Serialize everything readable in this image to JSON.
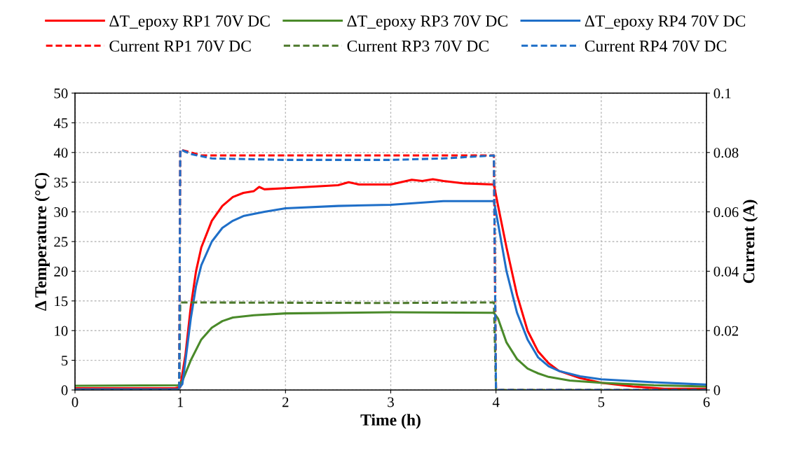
{
  "chart_data": {
    "type": "line",
    "xlabel": "Time (h)",
    "ylabel": "Δ Temperature (°C)",
    "y2label": "Current (A)",
    "xlim": [
      0,
      6
    ],
    "xticks": [
      0,
      1,
      2,
      3,
      4,
      5,
      6
    ],
    "ylim": [
      0,
      50
    ],
    "yticks": [
      0,
      5,
      10,
      15,
      20,
      25,
      30,
      35,
      40,
      45,
      50
    ],
    "y2lim": [
      0,
      0.1
    ],
    "y2ticks": [
      0,
      0.02,
      0.04,
      0.06,
      0.08,
      0.1
    ],
    "grid": true,
    "legend": "top",
    "marker": "none",
    "series": [
      {
        "name": "ΔT_epoxy RP1 70V DC",
        "color": "#ff0000",
        "line_style": "solid",
        "x": [
          0,
          0.95,
          1.0,
          1.05,
          1.1,
          1.15,
          1.2,
          1.3,
          1.4,
          1.5,
          1.6,
          1.7,
          1.75,
          1.8,
          2.0,
          2.5,
          2.6,
          2.7,
          3.0,
          3.2,
          3.3,
          3.4,
          3.5,
          3.7,
          3.98,
          4.02,
          4.1,
          4.2,
          4.3,
          4.4,
          4.5,
          4.6,
          4.8,
          5.0,
          5.3,
          5.6,
          6.0
        ],
        "values": [
          0.3,
          0.3,
          0.5,
          6,
          14,
          20,
          24,
          28.5,
          31,
          32.5,
          33.2,
          33.5,
          34.2,
          33.8,
          34,
          34.5,
          35,
          34.6,
          34.6,
          35.4,
          35.2,
          35.5,
          35.2,
          34.8,
          34.6,
          31,
          24,
          16,
          10,
          6.5,
          4.5,
          3.2,
          2,
          1.2,
          0.6,
          0.2,
          0.2
        ]
      },
      {
        "name": "ΔT_epoxy RP3 70V DC",
        "color": "#4a8a2a",
        "line_style": "solid",
        "x": [
          0,
          0.98,
          1.02,
          1.1,
          1.2,
          1.3,
          1.4,
          1.5,
          1.7,
          2.0,
          3.0,
          3.98,
          4.02,
          4.1,
          4.2,
          4.3,
          4.4,
          4.5,
          4.7,
          5.0,
          5.5,
          6.0
        ],
        "values": [
          0.7,
          0.8,
          1.5,
          5,
          8.5,
          10.5,
          11.6,
          12.2,
          12.6,
          12.9,
          13.1,
          13.0,
          12,
          8,
          5.2,
          3.6,
          2.8,
          2.2,
          1.6,
          1.2,
          0.8,
          0.6
        ]
      },
      {
        "name": "ΔT_epoxy RP4 70V DC",
        "color": "#1f6fc8",
        "line_style": "solid",
        "x": [
          0,
          0.98,
          1.02,
          1.05,
          1.1,
          1.15,
          1.2,
          1.3,
          1.4,
          1.5,
          1.6,
          1.8,
          2.0,
          2.5,
          3.0,
          3.5,
          3.98,
          4.02,
          4.1,
          4.2,
          4.3,
          4.4,
          4.5,
          4.6,
          4.8,
          5.0,
          5.5,
          6.0
        ],
        "values": [
          0.1,
          0.1,
          1,
          5,
          12,
          17.5,
          21,
          25,
          27.3,
          28.5,
          29.3,
          30,
          30.6,
          31,
          31.2,
          31.8,
          31.8,
          28,
          20,
          13,
          8.5,
          5.5,
          4.0,
          3.2,
          2.3,
          1.8,
          1.3,
          0.9
        ]
      },
      {
        "name": "Current RP1 70V DC",
        "color": "#ff0000",
        "line_style": "dashed",
        "axis": "y2",
        "x": [
          0,
          0.99,
          1.0,
          1.2,
          1.5,
          3.98,
          4.0,
          6.0
        ],
        "values": [
          0,
          0,
          0.081,
          0.079,
          0.079,
          0.079,
          0,
          0
        ]
      },
      {
        "name": "Current RP3 70V DC",
        "color": "#4e7a2e",
        "line_style": "dashed",
        "axis": "y2",
        "x": [
          0,
          0.99,
          1.0,
          3.0,
          3.98,
          4.0,
          6.0
        ],
        "values": [
          0,
          0,
          0.0295,
          0.0293,
          0.0295,
          0,
          0
        ]
      },
      {
        "name": "Current RP4 70V DC",
        "color": "#1f6fc8",
        "line_style": "dashed",
        "axis": "y2",
        "x": [
          0,
          0.99,
          1.0,
          1.1,
          1.3,
          2.0,
          3.0,
          3.5,
          3.98,
          4.0,
          6.0
        ],
        "values": [
          0,
          0,
          0.081,
          0.0795,
          0.078,
          0.0775,
          0.0775,
          0.078,
          0.079,
          0,
          0
        ]
      }
    ]
  }
}
